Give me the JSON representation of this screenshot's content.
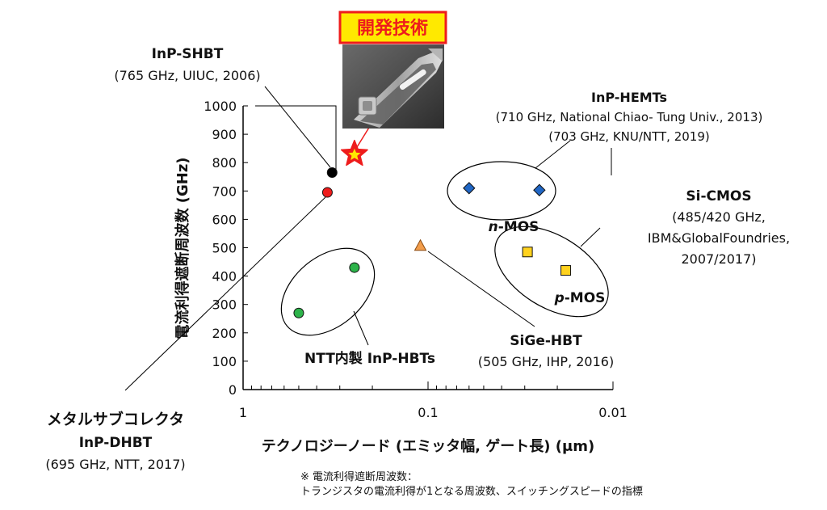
{
  "chart_data": {
    "type": "scatter",
    "xscale": "log",
    "xlim": [
      1,
      0.01
    ],
    "ylim": [
      0,
      1000
    ],
    "xlabel": "テクノロジーノード (エミッタ幅, ゲート長) (μm)",
    "ylabel": "電流利得遮断周波数 (GHz)",
    "xticks": [
      "1",
      "0.1",
      "0.01"
    ],
    "yticks": [
      "0",
      "100",
      "200",
      "300",
      "400",
      "500",
      "600",
      "700",
      "800",
      "900",
      "1000"
    ],
    "highlight_label": "開発技術",
    "series": [
      {
        "name": "Developed technology",
        "marker": "star",
        "color": "#ee1c1c",
        "points": [
          {
            "x": 0.25,
            "y": 830
          }
        ]
      },
      {
        "name": "InP-SHBT",
        "marker": "circle",
        "color": "#000000",
        "points": [
          {
            "x": 0.33,
            "y": 765
          }
        ]
      },
      {
        "name": "InP-DHBT",
        "marker": "circle",
        "color": "#ee1c1c",
        "points": [
          {
            "x": 0.35,
            "y": 695
          }
        ]
      },
      {
        "name": "NTT内製 InP-HBTs",
        "marker": "circle",
        "color": "#2db34a",
        "points": [
          {
            "x": 0.5,
            "y": 270
          },
          {
            "x": 0.25,
            "y": 430
          }
        ]
      },
      {
        "name": "SiGe-HBT",
        "marker": "triangle",
        "color": "#f29d4b",
        "points": [
          {
            "x": 0.11,
            "y": 505
          }
        ]
      },
      {
        "name": "InP-HEMTs",
        "marker": "diamond",
        "color": "#2066c4",
        "points": [
          {
            "x": 0.06,
            "y": 710
          },
          {
            "x": 0.025,
            "y": 703
          }
        ]
      },
      {
        "name": "Si-CMOS",
        "marker": "square",
        "color": "#ffd21e",
        "points": [
          {
            "x": 0.029,
            "y": 485
          },
          {
            "x": 0.018,
            "y": 420
          }
        ]
      }
    ],
    "annotations": {
      "inp_shbt": {
        "title": "InP-SHBT",
        "detail": "(765 GHz, UIUC, 2006)"
      },
      "inp_hemts": {
        "title": "InP-HEMTs",
        "line1": "(710 GHz, National Chiao- Tung Univ., 2013)",
        "line2": "(703 GHz, KNU/NTT, 2019)"
      },
      "si_cmos": {
        "title": "Si-CMOS",
        "line1": "(485/420 GHz,",
        "line2": "IBM&GlobalFoundries,",
        "line3": "2007/2017)"
      },
      "n_mos": {
        "prefix": "n",
        "suffix": "-MOS"
      },
      "p_mos": {
        "prefix": "p",
        "suffix": "-MOS"
      },
      "ntt_hbts": {
        "title": "NTT内製 InP-HBTs"
      },
      "sige": {
        "title": "SiGe-HBT",
        "detail": "(505 GHz, IHP, 2016)"
      },
      "inp_dhbt": {
        "label": "メタルサブコレクタ",
        "title": "InP-DHBT",
        "detail": "(695 GHz, NTT, 2017)"
      }
    },
    "footnote": {
      "line1": "※ 電流利得遮断周波数：",
      "line2": "トランジスタの電流利得が1となる周波数、スイッチングスピードの指標"
    }
  }
}
